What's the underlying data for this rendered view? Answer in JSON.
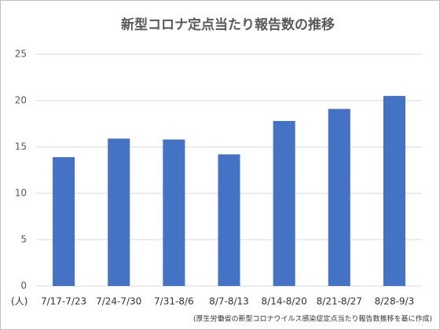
{
  "chart_data": {
    "type": "bar",
    "title": "新型コロナ定点当たり報告数の推移",
    "unit": "(人)",
    "note": "(厚生労働省の新型コロナウイルス感染症定点当たり報告数推移を基に作成)",
    "categories": [
      "7/17-7/23",
      "7/24-7/30",
      "7/31-8/6",
      "8/7-8/13",
      "8/14-8/20",
      "8/21-8/27",
      "8/28-9/3"
    ],
    "values": [
      13.9,
      15.9,
      15.8,
      14.2,
      17.8,
      19.1,
      20.5
    ],
    "color": "#4472c4",
    "ylim": [
      0,
      25
    ],
    "yticks": [
      0,
      5,
      10,
      15,
      20,
      25
    ],
    "grid": true
  }
}
